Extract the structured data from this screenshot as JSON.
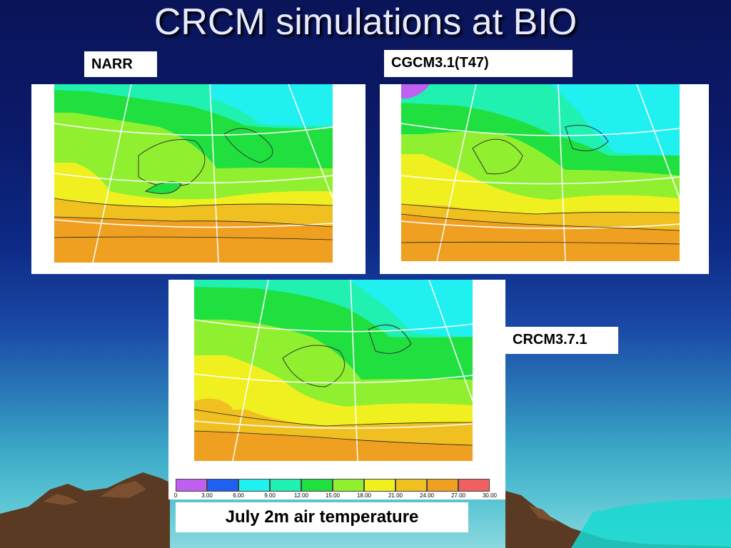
{
  "slide": {
    "title": "CRCM simulations at BIO"
  },
  "panels": {
    "narr_label": "NARR",
    "cgcm_label": "CGCM3.1(T47)",
    "crcm_label": "CRCM3.7.1"
  },
  "legend": {
    "colors": [
      "#c060f0",
      "#2060f0",
      "#20f0f0",
      "#20f0b0",
      "#20e040",
      "#90f030",
      "#f0f020",
      "#f0c020",
      "#f0a020",
      "#f06060"
    ],
    "ticks": [
      "0",
      "3.00",
      "6.00",
      "9.00",
      "12.00",
      "15.00",
      "18.00",
      "21.00",
      "24.00",
      "27.00",
      "30.00"
    ]
  },
  "caption": "July 2m air temperature"
}
